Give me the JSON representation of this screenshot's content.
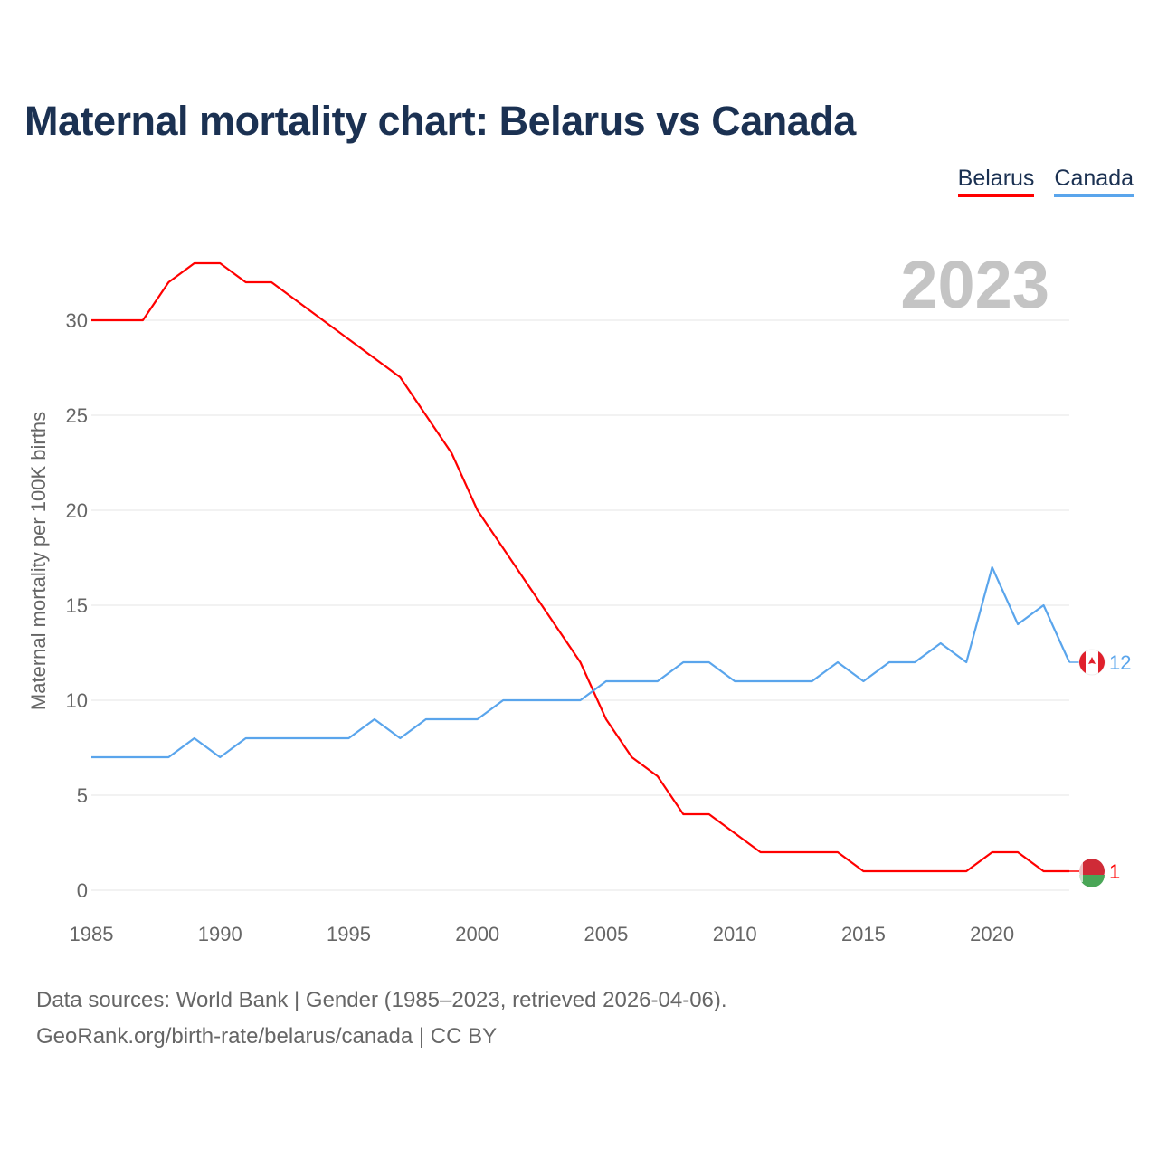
{
  "title": "Maternal mortality chart: Belarus vs Canada",
  "footer": {
    "line1": "Data sources: World Bank | Gender (1985–2023, retrieved 2026-04-06).",
    "line2": "GeoRank.org/birth-rate/belarus/canada | CC BY"
  },
  "chart_data": {
    "type": "line",
    "title": "Maternal mortality chart: Belarus vs Canada",
    "ylabel": "Maternal mortality per 100K births",
    "xlabel": "",
    "year_label": "2023",
    "xlim": [
      1985,
      2023
    ],
    "ylim": [
      0,
      33
    ],
    "xticks": [
      1985,
      1990,
      1995,
      2000,
      2005,
      2010,
      2015,
      2020
    ],
    "yticks": [
      0,
      5,
      10,
      15,
      20,
      25,
      30
    ],
    "grid": true,
    "legend_position": "top-right",
    "x": [
      1985,
      1986,
      1987,
      1988,
      1989,
      1990,
      1991,
      1992,
      1993,
      1994,
      1995,
      1996,
      1997,
      1998,
      1999,
      2000,
      2001,
      2002,
      2003,
      2004,
      2005,
      2006,
      2007,
      2008,
      2009,
      2010,
      2011,
      2012,
      2013,
      2014,
      2015,
      2016,
      2017,
      2018,
      2019,
      2020,
      2021,
      2022,
      2023
    ],
    "series": [
      {
        "name": "Belarus",
        "color": "#ff0000",
        "end_label": "1",
        "flag": "belarus-flag",
        "values": [
          30,
          30,
          30,
          32,
          33,
          33,
          32,
          32,
          31,
          30,
          29,
          28,
          27,
          25,
          23,
          20,
          18,
          16,
          14,
          12,
          9,
          7,
          6,
          4,
          4,
          3,
          2,
          2,
          2,
          2,
          1,
          1,
          1,
          1,
          1,
          2,
          2,
          1,
          1
        ]
      },
      {
        "name": "Canada",
        "color": "#5aa5ec",
        "end_label": "12",
        "flag": "canada-flag",
        "values": [
          7,
          7,
          7,
          7,
          8,
          7,
          8,
          8,
          8,
          8,
          8,
          9,
          8,
          9,
          9,
          9,
          10,
          10,
          10,
          10,
          11,
          11,
          11,
          12,
          12,
          11,
          11,
          11,
          11,
          12,
          11,
          12,
          12,
          13,
          12,
          17,
          14,
          15,
          12
        ]
      }
    ]
  }
}
